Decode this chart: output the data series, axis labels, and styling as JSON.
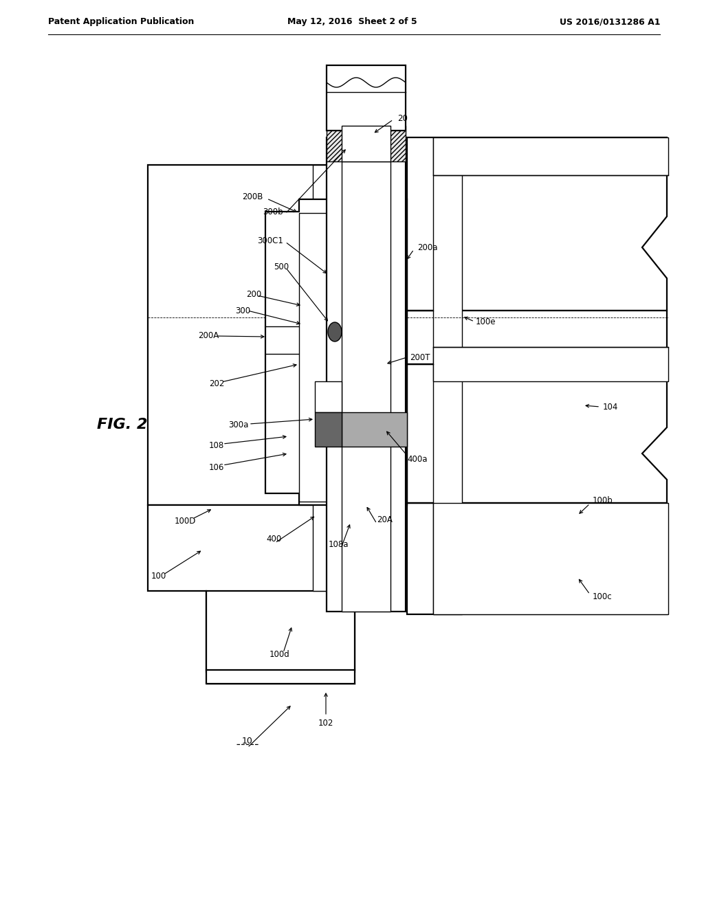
{
  "bg_color": "#ffffff",
  "line_color": "#000000",
  "header_left": "Patent Application Publication",
  "header_center": "May 12, 2016  Sheet 2 of 5",
  "header_right": "US 2016/0131286 A1"
}
